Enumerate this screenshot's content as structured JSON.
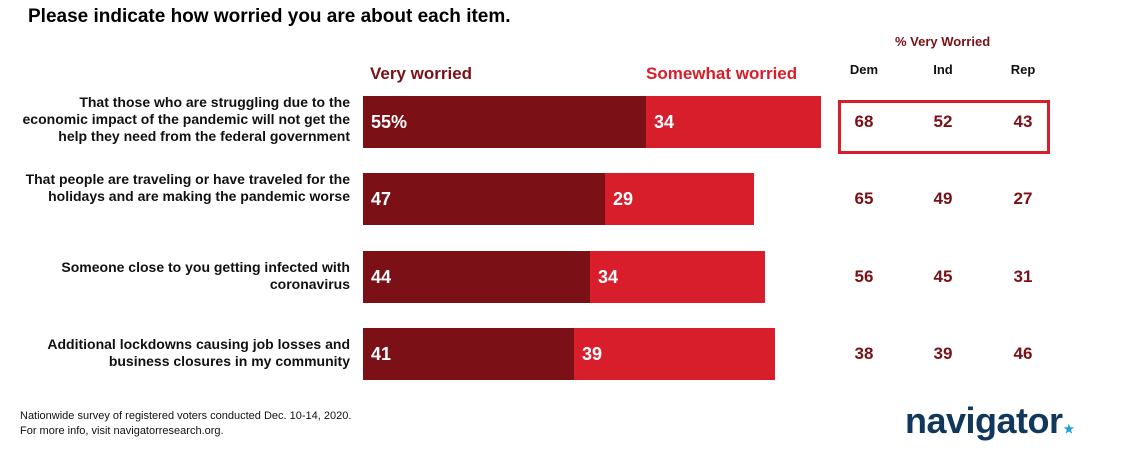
{
  "title": "Please indicate how worried you are about each item.",
  "footnote_lines": [
    "Nationwide survey of registered voters conducted Dec. 10-14, 2020.",
    "For more info, visit navigatorresearch.org."
  ],
  "logo": {
    "text": "navigator",
    "star": "★"
  },
  "colors": {
    "very_worried": "#7b1017",
    "somewhat_worried": "#d71e2a",
    "highlight": "#d71e2a",
    "logo": "#12375c",
    "logo_star": "#1a9fd9"
  },
  "chart_data": {
    "type": "bar",
    "orientation": "horizontal",
    "stacked": true,
    "categories": [
      "That those who are struggling due to the economic impact of the pandemic will not get the help they need from the federal government",
      "That people are traveling or have traveled for the holidays and are making the pandemic worse",
      "Someone close to you getting infected with coronavirus",
      "Additional lockdowns causing job losses and business closures in my community"
    ],
    "series": [
      {
        "name": "Very worried",
        "values": [
          55,
          47,
          44,
          41
        ],
        "labels": [
          "55%",
          "47",
          "44",
          "41"
        ]
      },
      {
        "name": "Somewhat worried",
        "values": [
          34,
          29,
          34,
          39
        ],
        "labels": [
          "34",
          "29",
          "34",
          "39"
        ]
      }
    ],
    "xlim": [
      0,
      100
    ],
    "legend": "top",
    "grid": false
  },
  "party_table": {
    "title": "% Very Worried",
    "columns": [
      "Dem",
      "Ind",
      "Rep"
    ],
    "rows": [
      [
        "68",
        "52",
        "43"
      ],
      [
        "65",
        "49",
        "27"
      ],
      [
        "56",
        "45",
        "31"
      ],
      [
        "38",
        "39",
        "46"
      ]
    ],
    "highlighted_row": 0
  }
}
